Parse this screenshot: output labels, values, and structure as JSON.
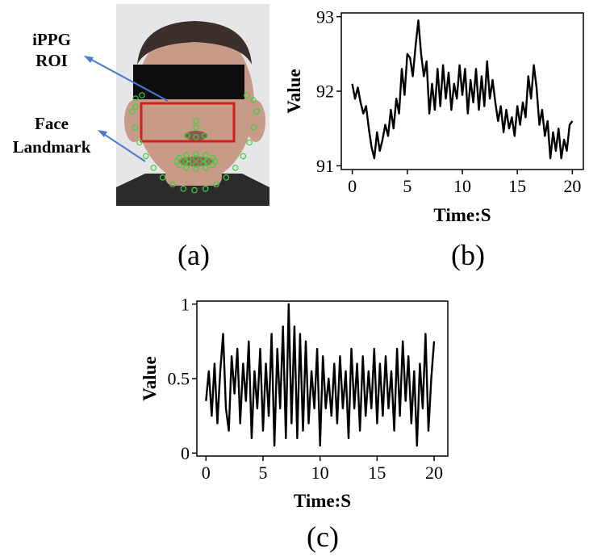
{
  "panels": {
    "a": {
      "label": "(a)",
      "annotations": [
        {
          "lines": [
            "iPPG",
            "ROI"
          ]
        },
        {
          "lines": [
            "Face",
            "Landmark"
          ]
        }
      ],
      "colors": {
        "roi_box": "#d11f1f",
        "landmarks": "#3fd23f",
        "arrows": "#4a7ad0",
        "mask": "#0d0d0d",
        "background": "#e6e6e8",
        "skin": "#c89a88"
      }
    },
    "b": {
      "label": "(b)"
    },
    "c": {
      "label": "(c)"
    }
  },
  "chart_data": [
    {
      "type": "line",
      "panel": "b",
      "xlabel": "Time:S",
      "ylabel": "Value",
      "xlim": [
        -1,
        21
      ],
      "ylim": [
        90.95,
        93.05
      ],
      "xticks": [
        0,
        5,
        10,
        15,
        20
      ],
      "yticks": [
        91,
        92,
        93
      ],
      "grid": false,
      "legend": "none",
      "color": "#000000",
      "x": [
        0,
        0.25,
        0.5,
        0.75,
        1,
        1.25,
        1.5,
        1.75,
        2,
        2.25,
        2.5,
        2.75,
        3,
        3.25,
        3.5,
        3.75,
        4,
        4.25,
        4.5,
        4.75,
        5,
        5.25,
        5.5,
        5.75,
        6,
        6.25,
        6.5,
        6.75,
        7,
        7.25,
        7.5,
        7.75,
        8,
        8.25,
        8.5,
        8.75,
        9,
        9.25,
        9.5,
        9.75,
        10,
        10.25,
        10.5,
        10.75,
        11,
        11.25,
        11.5,
        11.75,
        12,
        12.25,
        12.5,
        12.75,
        13,
        13.25,
        13.5,
        13.75,
        14,
        14.25,
        14.5,
        14.75,
        15,
        15.25,
        15.5,
        15.75,
        16,
        16.25,
        16.5,
        16.75,
        17,
        17.25,
        17.5,
        17.75,
        18,
        18.25,
        18.5,
        18.75,
        19,
        19.25,
        19.5,
        19.75,
        20
      ],
      "values": [
        92.1,
        91.9,
        92.05,
        91.85,
        91.7,
        91.8,
        91.5,
        91.25,
        91.1,
        91.45,
        91.2,
        91.35,
        91.55,
        91.4,
        91.75,
        91.5,
        91.9,
        91.7,
        92.3,
        91.95,
        92.5,
        92.45,
        92.2,
        92.6,
        92.95,
        92.5,
        92.2,
        92.4,
        91.7,
        92.1,
        91.75,
        92.3,
        91.8,
        92.35,
        91.9,
        92.25,
        91.75,
        92.1,
        91.9,
        92.35,
        91.95,
        92.3,
        91.7,
        92.15,
        91.85,
        92.3,
        91.75,
        92.2,
        91.8,
        92.4,
        91.9,
        92.15,
        91.85,
        91.6,
        91.8,
        91.45,
        91.75,
        91.5,
        91.65,
        91.4,
        91.8,
        91.55,
        91.85,
        91.65,
        92.2,
        91.9,
        92.35,
        92.05,
        91.55,
        91.75,
        91.4,
        91.6,
        91.1,
        91.45,
        91.2,
        91.5,
        91.1,
        91.35,
        91.2,
        91.55,
        91.6
      ]
    },
    {
      "type": "line",
      "panel": "c",
      "xlabel": "Time:S",
      "ylabel": "Value",
      "xlim": [
        -0.8,
        21.2
      ],
      "ylim": [
        -0.02,
        1.02
      ],
      "xticks": [
        0,
        5,
        10,
        15,
        20
      ],
      "yticks": [
        0,
        0.5,
        1
      ],
      "grid": false,
      "legend": "none",
      "color": "#000000",
      "x": [
        0,
        0.25,
        0.5,
        0.75,
        1,
        1.25,
        1.5,
        1.75,
        2,
        2.25,
        2.5,
        2.75,
        3,
        3.25,
        3.5,
        3.75,
        4,
        4.25,
        4.5,
        4.75,
        5,
        5.25,
        5.5,
        5.75,
        6,
        6.25,
        6.5,
        6.75,
        7,
        7.25,
        7.5,
        7.75,
        8,
        8.25,
        8.5,
        8.75,
        9,
        9.25,
        9.5,
        9.75,
        10,
        10.25,
        10.5,
        10.75,
        11,
        11.25,
        11.5,
        11.75,
        12,
        12.25,
        12.5,
        12.75,
        13,
        13.25,
        13.5,
        13.75,
        14,
        14.25,
        14.5,
        14.75,
        15,
        15.25,
        15.5,
        15.75,
        16,
        16.25,
        16.5,
        16.75,
        17,
        17.25,
        17.5,
        17.75,
        18,
        18.25,
        18.5,
        18.75,
        19,
        19.25,
        19.5,
        19.75,
        20
      ],
      "values": [
        0.35,
        0.55,
        0.25,
        0.6,
        0.2,
        0.55,
        0.8,
        0.3,
        0.15,
        0.65,
        0.4,
        0.7,
        0.2,
        0.6,
        0.35,
        0.75,
        0.1,
        0.55,
        0.3,
        0.7,
        0.15,
        0.6,
        0.25,
        0.8,
        0.05,
        0.7,
        0.3,
        0.85,
        0.1,
        1.0,
        0.2,
        0.85,
        0.1,
        0.8,
        0.15,
        0.75,
        0.2,
        0.55,
        0.3,
        0.7,
        0.05,
        0.65,
        0.3,
        0.5,
        0.25,
        0.6,
        0.2,
        0.65,
        0.3,
        0.55,
        0.1,
        0.7,
        0.3,
        0.6,
        0.15,
        0.65,
        0.25,
        0.55,
        0.3,
        0.7,
        0.2,
        0.6,
        0.25,
        0.65,
        0.3,
        0.55,
        0.15,
        0.7,
        0.25,
        0.75,
        0.35,
        0.65,
        0.2,
        0.55,
        0.05,
        0.6,
        0.3,
        0.8,
        0.15,
        0.5,
        0.75
      ]
    }
  ]
}
